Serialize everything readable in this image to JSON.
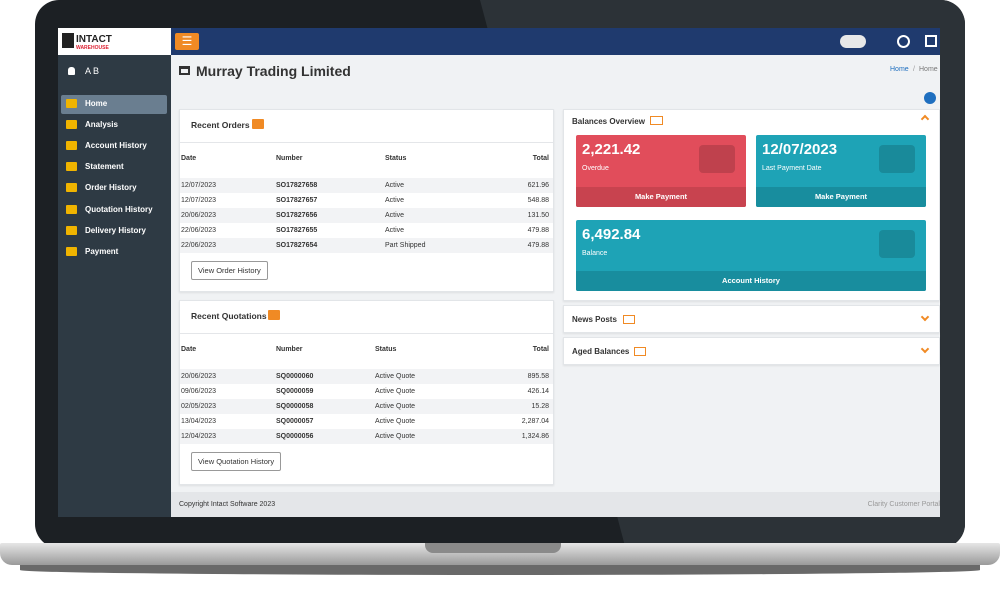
{
  "logo": {
    "name": "INTACT",
    "sub": "WAREHOUSE"
  },
  "user": "A B",
  "nav": [
    "Home",
    "Analysis",
    "Account History",
    "Statement",
    "Order History",
    "Quotation History",
    "Delivery History",
    "Payment"
  ],
  "page_title": "Murray Trading Limited",
  "breadcrumb": {
    "items": [
      "Home",
      "Home"
    ],
    "separator": "/"
  },
  "recent_orders": {
    "title": "Recent Orders",
    "columns": [
      "Date",
      "Number",
      "Status",
      "Total"
    ],
    "rows": [
      [
        "12/07/2023",
        "SO17827658",
        "Active",
        "621.96"
      ],
      [
        "12/07/2023",
        "SO17827657",
        "Active",
        "548.88"
      ],
      [
        "20/06/2023",
        "SO17827656",
        "Active",
        "131.50"
      ],
      [
        "22/06/2023",
        "SO17827655",
        "Active",
        "479.88"
      ],
      [
        "22/06/2023",
        "SO17827654",
        "Part Shipped",
        "479.88"
      ]
    ],
    "button": "View Order History"
  },
  "recent_quotations": {
    "title": "Recent Quotations",
    "columns": [
      "Date",
      "Number",
      "Status",
      "Total"
    ],
    "rows": [
      [
        "20/06/2023",
        "SQ0000060",
        "Active Quote",
        "895.58"
      ],
      [
        "09/06/2023",
        "SQ0000059",
        "Active Quote",
        "426.14"
      ],
      [
        "02/05/2023",
        "SQ0000058",
        "Active Quote",
        "15.28"
      ],
      [
        "13/04/2023",
        "SQ0000057",
        "Active Quote",
        "2,287.04"
      ],
      [
        "12/04/2023",
        "SQ0000056",
        "Active Quote",
        "1,324.86"
      ]
    ],
    "button": "View Quotation History"
  },
  "balances": {
    "title": "Balances Overview",
    "cards": [
      {
        "value": "2,221.42",
        "label": "Overdue",
        "action": "Make Payment"
      },
      {
        "value": "12/07/2023",
        "label": "Last Payment Date",
        "action": "Make Payment"
      },
      {
        "value": "6,492.84",
        "label": "Balance",
        "action": "Account History"
      }
    ]
  },
  "news_posts": "News Posts",
  "aged_balances": "Aged Balances",
  "footer": {
    "copyright": "Copyright Intact Software 2023",
    "product": "Clarity Customer Portal"
  }
}
